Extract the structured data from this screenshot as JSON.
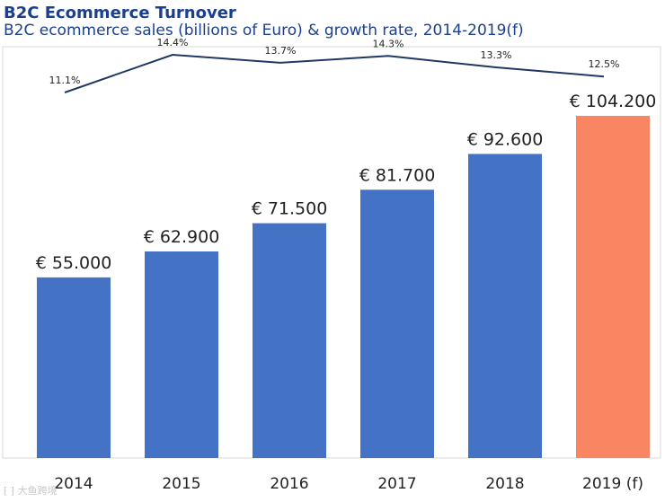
{
  "chart_data": {
    "type": "bar",
    "title": "B2C Ecommerce Turnover",
    "subtitle": "B2C ecommerce sales (billions of Euro) & growth rate, 2014-2019(f)",
    "categories": [
      "2014",
      "2015",
      "2016",
      "2017",
      "2018",
      "2019 (f)"
    ],
    "series": [
      {
        "name": "B2C ecommerce sales (billions of Euro)",
        "type": "bar",
        "values": [
          55.0,
          62.9,
          71.5,
          81.7,
          92.6,
          104.2
        ],
        "labels": [
          "€ 55.000",
          "€ 62.900",
          "€ 71.500",
          "€ 81.700",
          "€ 92.600",
          "€ 104.200"
        ],
        "color": "#4472c4",
        "highlight_index": 5,
        "highlight_color": "#f98563"
      },
      {
        "name": "Growth rate",
        "type": "line",
        "values": [
          11.1,
          14.4,
          13.7,
          14.3,
          13.3,
          12.5
        ],
        "labels": [
          "11.1%",
          "14.4%",
          "13.7%",
          "14.3%",
          "13.3%",
          "12.5%"
        ],
        "color": "#1f3864"
      }
    ],
    "ylim": [
      0,
      104.2
    ],
    "growth_ylim": [
      11.1,
      14.4
    ],
    "xlabel": "",
    "ylabel": "",
    "grid": false,
    "legend": "none"
  },
  "watermark": "⁅ ⁆ 大鱼跨境"
}
